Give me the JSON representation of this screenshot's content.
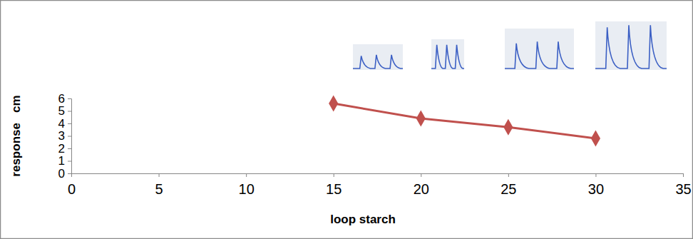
{
  "chart_data": {
    "type": "line",
    "x_label": "loop starch",
    "y_label": "response   cm",
    "x": [
      15,
      20,
      25,
      30
    ],
    "values": [
      5.6,
      4.4,
      3.7,
      2.8
    ],
    "color": "#c0504d",
    "marker": "diamond",
    "line_style": "solid",
    "xlim": [
      0,
      35
    ],
    "xticks": [
      0,
      5,
      10,
      15,
      20,
      25,
      30,
      35
    ],
    "ylim": [
      0,
      6
    ],
    "yticks": [
      0,
      1,
      2,
      3,
      4,
      5,
      6
    ],
    "grid": false
  }
}
